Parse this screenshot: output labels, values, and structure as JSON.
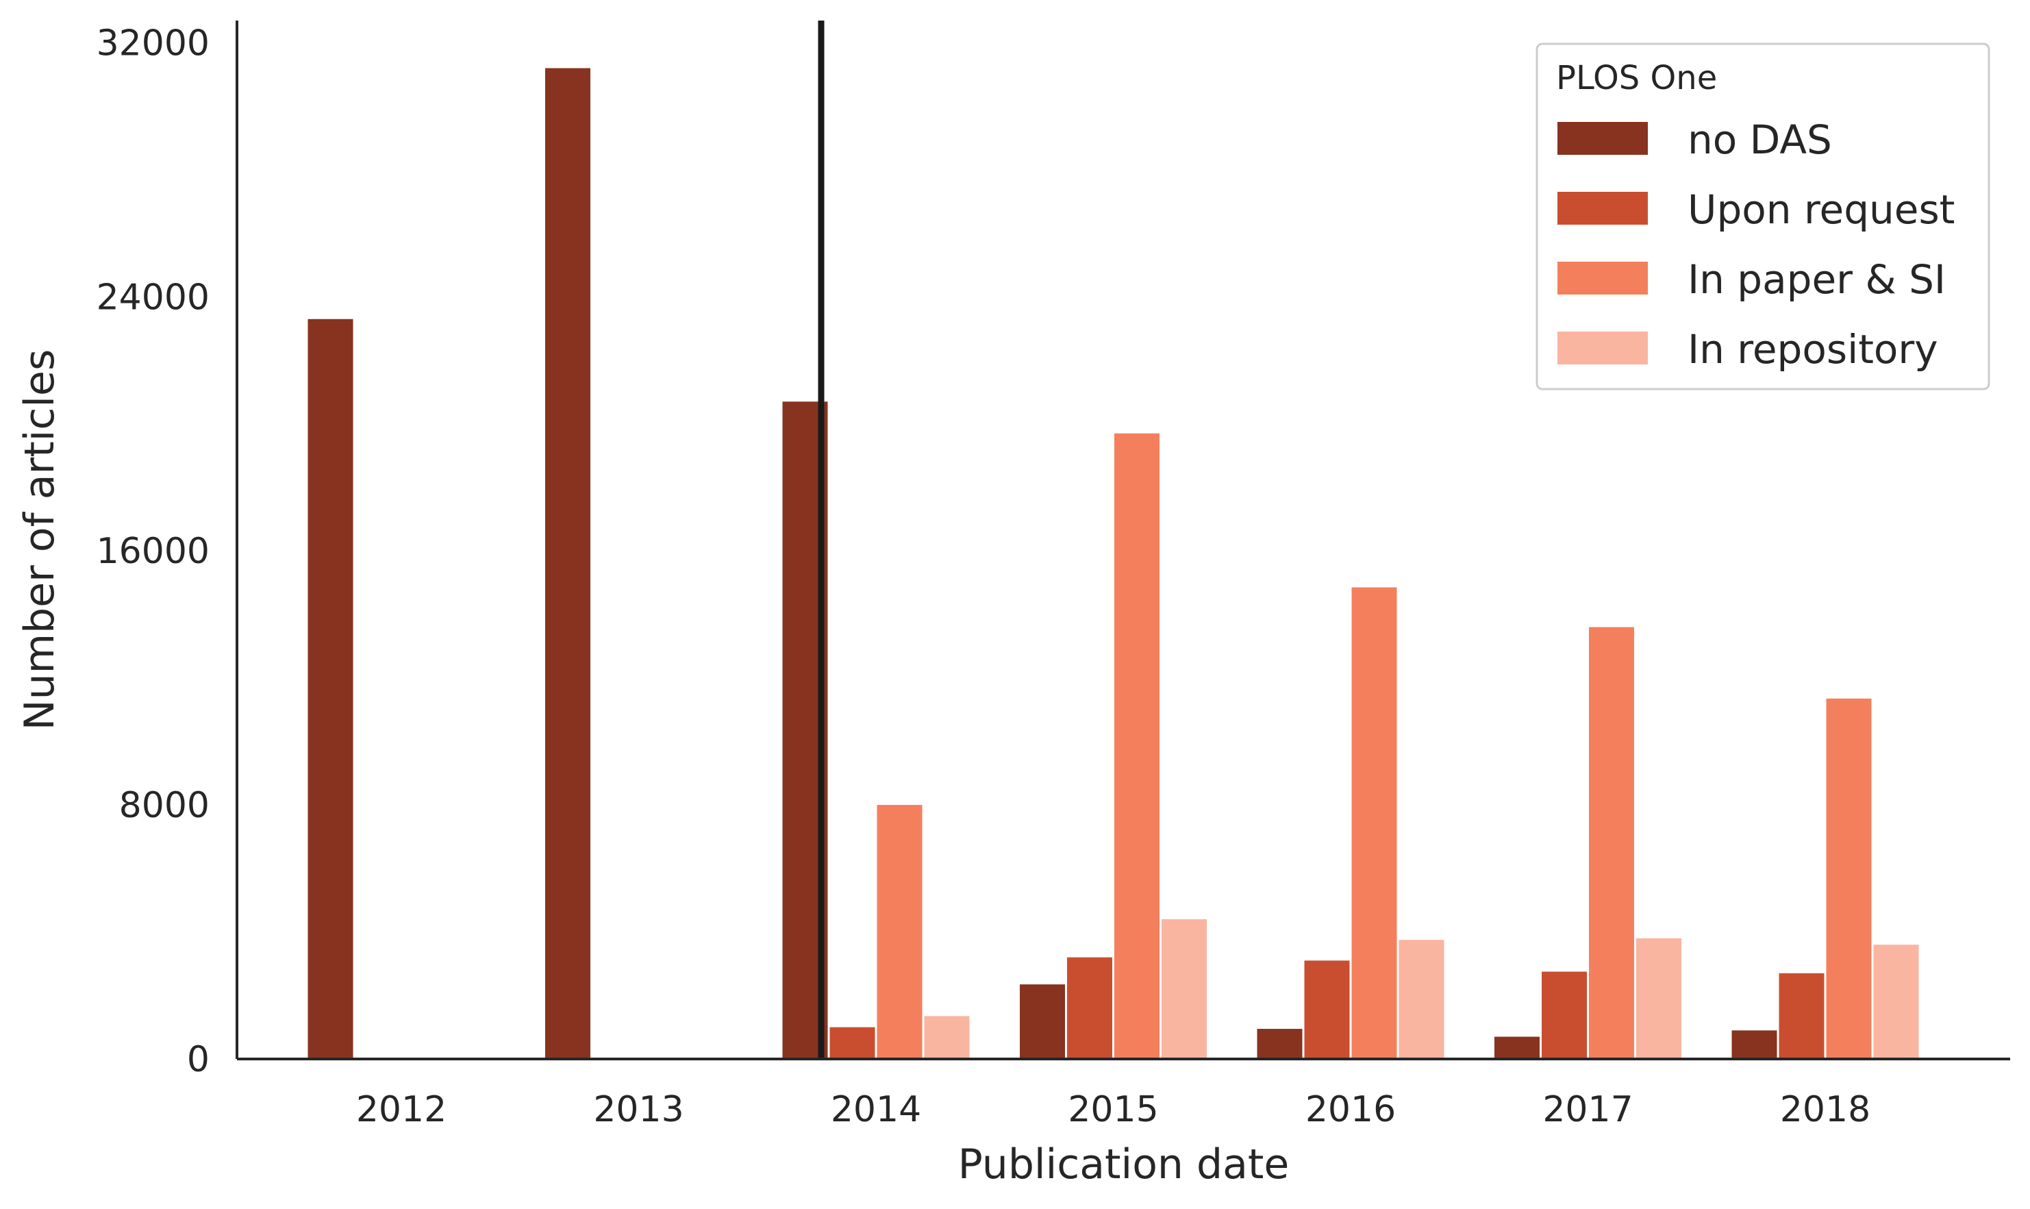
{
  "chart_data": {
    "type": "bar",
    "xlabel": "Publication date",
    "ylabel": "Number of articles",
    "categories": [
      "2012",
      "2013",
      "2014",
      "2015",
      "2016",
      "2017",
      "2018"
    ],
    "yticks": [
      0,
      8000,
      16000,
      24000,
      32000
    ],
    "ylim": [
      0,
      32700
    ],
    "grid": false,
    "legend": {
      "title": "PLOS One",
      "position": "top-right"
    },
    "series": [
      {
        "name": "no DAS",
        "color": "#87331f",
        "values": [
          23300,
          31200,
          20700,
          2350,
          950,
          700,
          900
        ]
      },
      {
        "name": "Upon request",
        "color": "#c94e2f",
        "values": [
          0,
          0,
          1000,
          3200,
          3100,
          2750,
          2700
        ]
      },
      {
        "name": "In paper & SI",
        "color": "#f47f5d",
        "values": [
          0,
          0,
          8000,
          19700,
          14850,
          13600,
          11350
        ]
      },
      {
        "name": "In repository",
        "color": "#f9b5a0",
        "values": [
          0,
          0,
          1350,
          4400,
          3750,
          3800,
          3600
        ]
      }
    ],
    "annotations": [
      {
        "type": "vertical-line",
        "color": "#1a1a1a",
        "x_category": "2014",
        "note": "line just left of the 2014 group center"
      }
    ]
  }
}
